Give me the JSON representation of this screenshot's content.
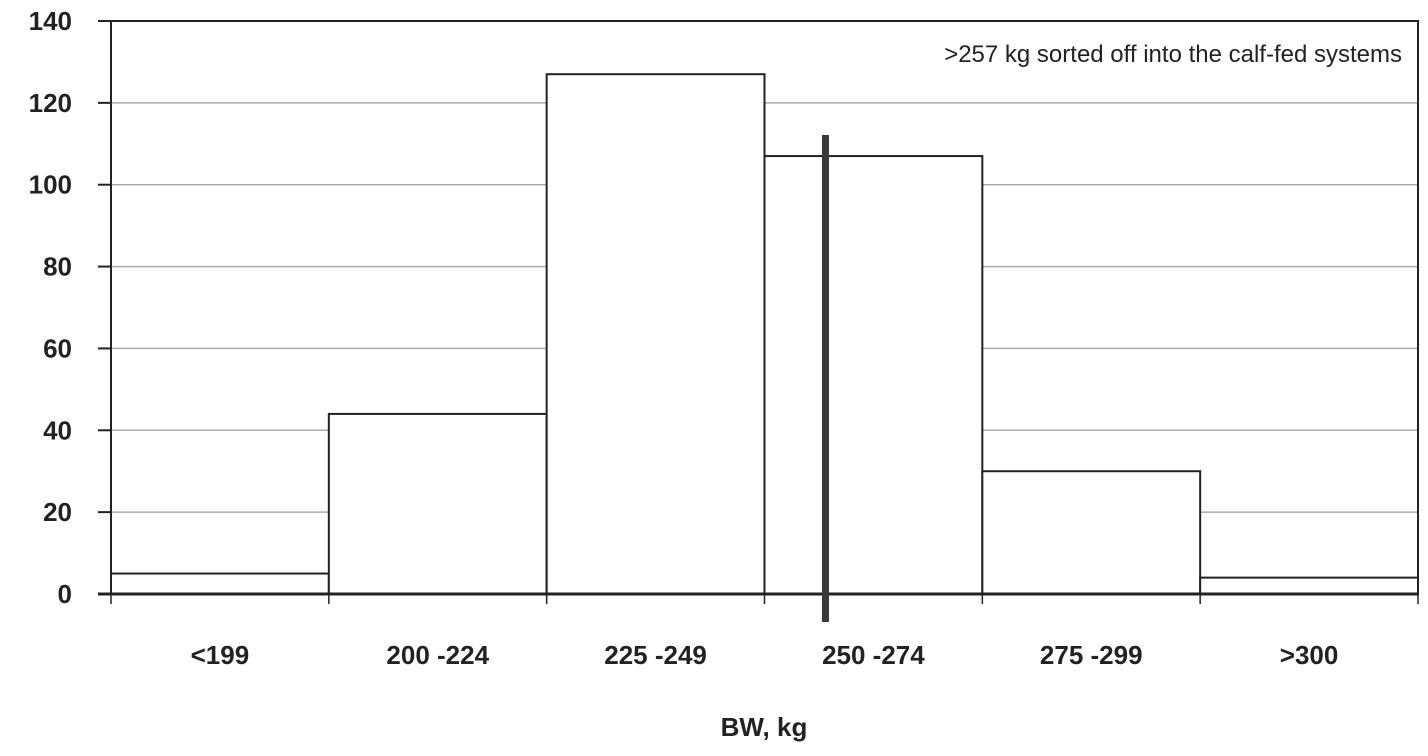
{
  "chart_data": {
    "type": "bar",
    "categories": [
      "<199",
      "200 -224",
      "225 -249",
      "250 -274",
      "275 -299",
      ">300"
    ],
    "values": [
      5,
      44,
      127,
      107,
      30,
      4
    ],
    "xlabel": "BW, kg",
    "ylabel": "",
    "ylim": [
      0,
      140
    ],
    "yticks": [
      0,
      20,
      40,
      60,
      80,
      100,
      120,
      140
    ],
    "grid": true,
    "annotation": ">257 kg sorted off into the calf-fed systems",
    "cutoff_value": 257,
    "colors": {
      "bar_fill": "#ffffff",
      "bar_stroke": "#222222",
      "grid": "#aaaaaa",
      "cutoff_line": "#3a3a3a"
    }
  }
}
